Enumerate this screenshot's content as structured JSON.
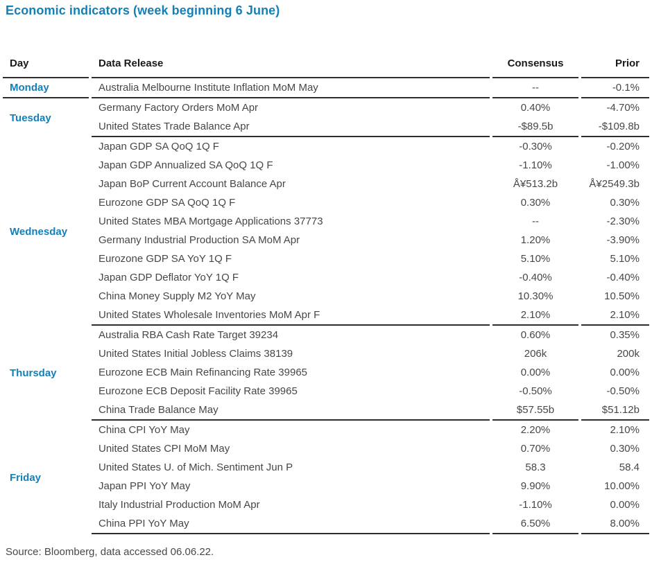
{
  "colors": {
    "accent": "#1380b8",
    "heading_text": "#1a1a1a",
    "body_text": "#474747",
    "rule": "#2d2d2d"
  },
  "chart_data": {
    "type": "table",
    "title": "Economic indicators (week beginning 6 June)",
    "columns": [
      "Day",
      "Data Release",
      "Consensus",
      "Prior"
    ],
    "groups": [
      {
        "day": "Monday",
        "rows": [
          {
            "release": "Australia Melbourne Institute Inflation MoM May",
            "consensus": "--",
            "prior": "-0.1%"
          }
        ]
      },
      {
        "day": "Tuesday",
        "rows": [
          {
            "release": "Germany Factory Orders MoM Apr",
            "consensus": "0.40%",
            "prior": "-4.70%"
          },
          {
            "release": "United States Trade Balance Apr",
            "consensus": "-$89.5b",
            "prior": "-$109.8b"
          }
        ]
      },
      {
        "day": "Wednesday",
        "rows": [
          {
            "release": "Japan GDP SA QoQ 1Q F",
            "consensus": "-0.30%",
            "prior": "-0.20%"
          },
          {
            "release": "Japan GDP Annualized SA QoQ 1Q F",
            "consensus": "-1.10%",
            "prior": "-1.00%"
          },
          {
            "release": "Japan BoP Current Account Balance Apr",
            "consensus": "Å¥513.2b",
            "prior": "Å¥2549.3b"
          },
          {
            "release": "Eurozone GDP SA QoQ 1Q F",
            "consensus": "0.30%",
            "prior": "0.30%"
          },
          {
            "release": "United States MBA Mortgage Applications 37773",
            "consensus": "--",
            "prior": "-2.30%"
          },
          {
            "release": "Germany Industrial Production SA MoM Apr",
            "consensus": "1.20%",
            "prior": "-3.90%"
          },
          {
            "release": "Eurozone GDP SA YoY 1Q F",
            "consensus": "5.10%",
            "prior": "5.10%"
          },
          {
            "release": "Japan GDP Deflator YoY 1Q F",
            "consensus": "-0.40%",
            "prior": "-0.40%"
          },
          {
            "release": "China Money Supply M2 YoY May",
            "consensus": "10.30%",
            "prior": "10.50%"
          },
          {
            "release": "United States Wholesale Inventories MoM Apr F",
            "consensus": "2.10%",
            "prior": "2.10%"
          }
        ]
      },
      {
        "day": "Thursday",
        "rows": [
          {
            "release": "Australia RBA Cash Rate Target 39234",
            "consensus": "0.60%",
            "prior": "0.35%"
          },
          {
            "release": "United States Initial Jobless Claims 38139",
            "consensus": "206k",
            "prior": "200k"
          },
          {
            "release": "Eurozone ECB Main Refinancing Rate 39965",
            "consensus": "0.00%",
            "prior": "0.00%"
          },
          {
            "release": "Eurozone ECB Deposit Facility Rate 39965",
            "consensus": "-0.50%",
            "prior": "-0.50%"
          },
          {
            "release": "China Trade Balance May",
            "consensus": "$57.55b",
            "prior": "$51.12b"
          }
        ]
      },
      {
        "day": "Friday",
        "rows": [
          {
            "release": "China CPI YoY May",
            "consensus": "2.20%",
            "prior": "2.10%"
          },
          {
            "release": "United States CPI MoM May",
            "consensus": "0.70%",
            "prior": "0.30%"
          },
          {
            "release": "United States U. of Mich. Sentiment Jun P",
            "consensus": "58.3",
            "prior": "58.4"
          },
          {
            "release": "Japan PPI YoY May",
            "consensus": "9.90%",
            "prior": "10.00%"
          },
          {
            "release": "Italy Industrial Production MoM Apr",
            "consensus": "-1.10%",
            "prior": "0.00%"
          },
          {
            "release": "China PPI YoY May",
            "consensus": "6.50%",
            "prior": "8.00%"
          }
        ]
      }
    ],
    "source": "Source: Bloomberg, data accessed 06.06.22."
  }
}
